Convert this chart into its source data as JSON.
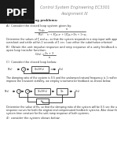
{
  "bg_color": "#ffffff",
  "page_bg": "#f0f0f0",
  "pdf_bg": "#1a1a1a",
  "pdf_text": "PDF",
  "title1": "Control System Engineering EC3301",
  "title2": "Assignment III",
  "solve": "Solve the following problems:",
  "secA": "A)  Consider the closed loop system given by:",
  "fracY": "Y(s)",
  "fracR": "R(s)",
  "num": "s²",
  "den": "s³ + 3ζωₙs² + (2ζωₙ+3)s + 1+ωₙ",
  "secA2a": "Determine the values of ζ and ωₙ, so that the system responds to a step input with approximately 5%",
  "secA2b": "overshoot and settle within 2 seconds of 1 sec. (use either the substitution criterion)",
  "secB": "B)  Obtain the unit impulse response and step response of a unity feedback system whose",
  "secBb": "open loop transfer function:",
  "Gs_label": "G(s) =",
  "Gs_num": "2s + 3",
  "Gs_den": "s²",
  "secC": "C)  Consider the closed loop below:",
  "Rin": "R(s)",
  "Cout": "C(s)",
  "block_label1": "G(s)/H(s)",
  "desc1a": "The damping ratio of the system is 0.5 and the undamped natural frequency is 1 rad/sec. To",
  "desc1b": "improve the transient stability, we employ a tachometer feedback as shown below:",
  "R2": "R(s)",
  "C2": "C(s)",
  "blk_G": "G",
  "blk_s": "s",
  "blk_Kv": "Kv",
  "blk_Gs": "G(s)/H(s)",
  "secD_a": "Determine the value of Kv, so that the damping ratio of the system will be 0.5 sec the unit step",
  "secD_b": "response curves for both the original and compensated feedback systems. Also show the error",
  "secD_c": "system time constant for the unit ramp response of both systems.",
  "secE": "4)  consider the system shown below:"
}
